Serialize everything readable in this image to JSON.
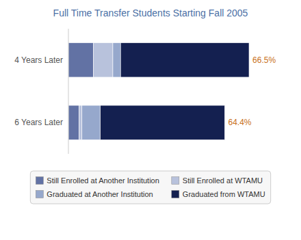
{
  "chart_data": {
    "type": "bar",
    "title": "Full Time Transfer Students Starting Fall 2005",
    "orientation": "horizontal",
    "stacked": true,
    "categories": [
      "4 Years Later",
      "6 Years Later"
    ],
    "series": [
      {
        "name": "Still Enrolled at Another Institution",
        "color": "#6272a4",
        "values": [
          13.0,
          5.5
        ]
      },
      {
        "name": "Still Enrolled at WTAMU",
        "color": "#b8c2dc",
        "values": [
          10.0,
          1.5
        ]
      },
      {
        "name": "Graduated at Another Institution",
        "color": "#96a8cc",
        "values": [
          4.0,
          9.5
        ]
      },
      {
        "name": "Graduated from WTAMU",
        "color": "#142050",
        "values": [
          66.5,
          64.4
        ],
        "data_labels": true,
        "value_labels": [
          "66.5%",
          "64.4%"
        ]
      }
    ],
    "xlim": [
      0,
      108
    ],
    "tick_labels": "y",
    "grid": false,
    "legend": "bottom"
  }
}
